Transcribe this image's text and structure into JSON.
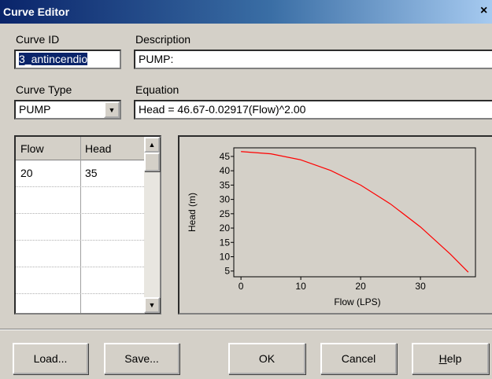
{
  "window": {
    "title": "Curve Editor",
    "close": "×"
  },
  "fields": {
    "curve_id_label": "Curve ID",
    "curve_id": "3_antincendio",
    "description_label": "Description",
    "description": "PUMP:",
    "curve_type_label": "Curve Type",
    "curve_type": "PUMP",
    "equation_label": "Equation",
    "equation": "Head = 46.67-0.02917(Flow)^2.00"
  },
  "table": {
    "headers": [
      "Flow",
      "Head"
    ],
    "rows": [
      [
        "20",
        "35"
      ]
    ]
  },
  "buttons": [
    "Load...",
    "Save...",
    "OK",
    "Cancel",
    "Help"
  ],
  "chart_data": {
    "type": "line",
    "x_label": "Flow (LPS)",
    "y_label": "Head (m)",
    "x": [
      0,
      5,
      10,
      15,
      20,
      25,
      30,
      35,
      38
    ],
    "values": [
      46.7,
      45.9,
      43.8,
      40.1,
      35.0,
      28.4,
      20.4,
      10.9,
      4.6
    ],
    "color": "#ff0000",
    "xlim": [
      -1.2,
      39.2
    ],
    "ylim": [
      3,
      48
    ],
    "xticks": [
      0,
      10,
      20,
      30
    ],
    "yticks": [
      5,
      10,
      15,
      20,
      25,
      30,
      35,
      40,
      45
    ]
  }
}
